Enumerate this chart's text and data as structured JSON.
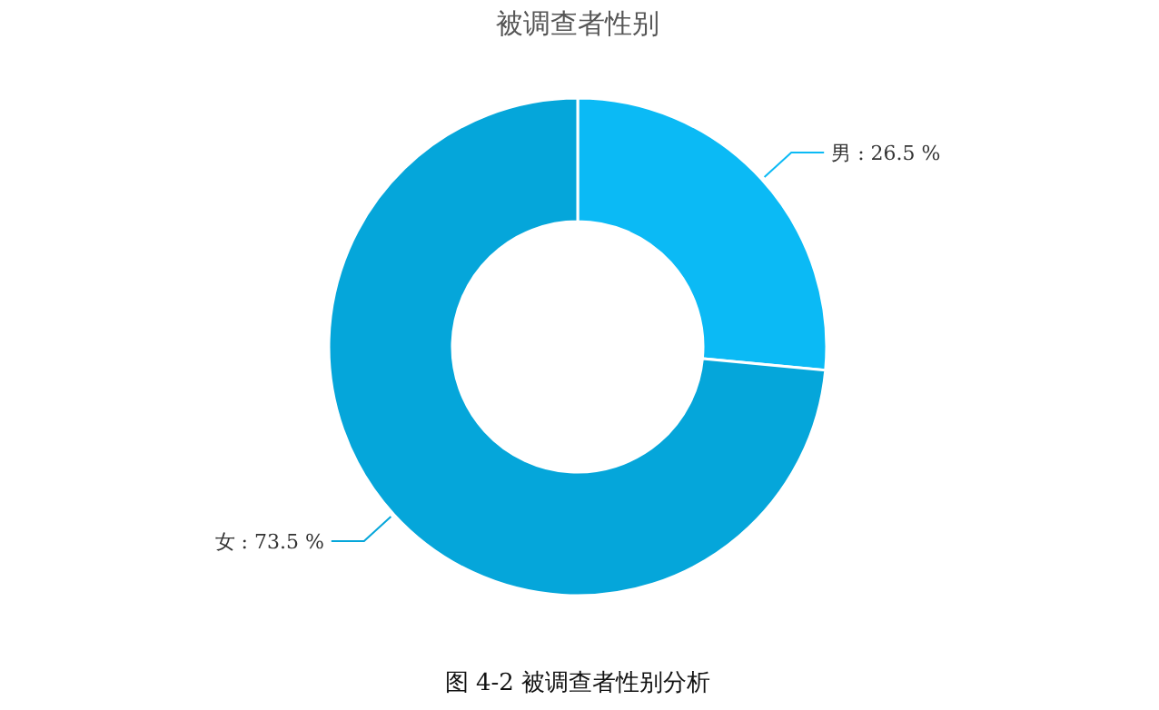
{
  "chart_data": {
    "type": "donut",
    "title": "被调查者性别",
    "categories": [
      "男",
      "女"
    ],
    "values": [
      26.5,
      73.5
    ],
    "colors": [
      "#0bbaf5",
      "#05a6da"
    ],
    "value_labels": [
      ": 26.5 %",
      ": 73.5 %"
    ],
    "legend": false,
    "annotations": [
      "图 4-2  被调查者性别分析"
    ]
  }
}
